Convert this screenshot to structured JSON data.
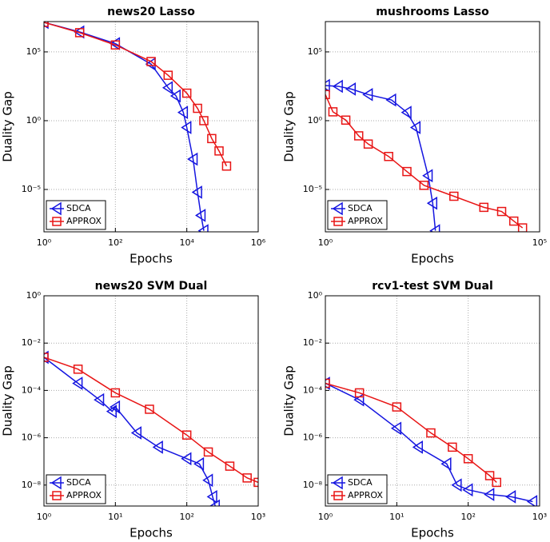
{
  "chart_data": [
    {
      "type": "line",
      "title": "news20 Lasso",
      "xlabel": "Epochs",
      "ylabel": "Duality Gap",
      "log_x": true,
      "log_y": true,
      "grid": true,
      "legend": "lower left",
      "xlim": [
        1,
        1000000
      ],
      "ylim": [
        8.3e-09,
        16000000.0
      ],
      "xticks": [
        {
          "value": 1,
          "label": "10⁰"
        },
        {
          "value": 100,
          "label": "10²"
        },
        {
          "value": 10000,
          "label": "10⁴"
        },
        {
          "value": 1000000,
          "label": "10⁶"
        }
      ],
      "yticks": [
        {
          "value": 1e-05,
          "label": "10⁻⁵"
        },
        {
          "value": 1,
          "label": "10⁰"
        },
        {
          "value": 100000,
          "label": "10⁵"
        }
      ],
      "series": [
        {
          "name": "SDCA",
          "color": "#1515e0",
          "marker": "triangle",
          "x": [
            1,
            10,
            100,
            1000,
            3000,
            5000,
            8000,
            10000,
            15000,
            20000,
            25000,
            30000
          ],
          "values": [
            14000000.0,
            2800000.0,
            400000.0,
            13000.0,
            250,
            63,
            4,
            0.32,
            0.0016,
            6.3e-06,
            1.3e-07,
            1e-08
          ]
        },
        {
          "name": "APPROX",
          "color": "#e81515",
          "marker": "square",
          "x": [
            1,
            10,
            100,
            1000,
            3000,
            10000,
            20000,
            30000,
            50000,
            80000,
            130000
          ],
          "values": [
            14000000.0,
            2500000.0,
            320000.0,
            20000.0,
            2000,
            100,
            7.9,
            1,
            0.05,
            0.0063,
            0.0005
          ]
        }
      ]
    },
    {
      "type": "line",
      "title": "mushrooms Lasso",
      "xlabel": "Epochs",
      "ylabel": "Duality Gap",
      "log_x": true,
      "log_y": true,
      "grid": true,
      "legend": "lower left",
      "xlim": [
        1,
        100000
      ],
      "ylim": [
        8.3e-09,
        16000000.0
      ],
      "xticks": [
        {
          "value": 1,
          "label": "10⁰"
        },
        {
          "value": 100000,
          "label": "10⁵"
        }
      ],
      "yticks": [
        {
          "value": 1e-05,
          "label": "10⁻⁵"
        },
        {
          "value": 1,
          "label": "10⁰"
        },
        {
          "value": 100000,
          "label": "10⁵"
        }
      ],
      "series": [
        {
          "name": "SDCA",
          "color": "#1515e0",
          "marker": "triangle",
          "x": [
            1,
            2,
            4,
            10,
            35,
            80,
            130,
            250,
            320,
            370
          ],
          "values": [
            360,
            316,
            200,
            79,
            32,
            4,
            0.32,
            0.0001,
            1e-06,
            1e-08
          ]
        },
        {
          "name": "APPROX",
          "color": "#e81515",
          "marker": "square",
          "x": [
            1,
            1.5,
            3,
            6,
            10,
            30,
            80,
            200,
            1000,
            5000,
            13000,
            25000,
            40000
          ],
          "values": [
            79,
            4.4,
            1.1,
            0.079,
            0.02,
            0.0025,
            0.0002,
            2e-05,
            3.2e-06,
            5e-07,
            2.5e-07,
            5e-08,
            1.6e-08
          ]
        }
      ]
    },
    {
      "type": "line",
      "title": "news20 SVM Dual",
      "xlabel": "Epochs",
      "ylabel": "Duality Gap",
      "log_x": true,
      "log_y": true,
      "grid": true,
      "legend": "lower left",
      "xlim": [
        1,
        1000
      ],
      "ylim": [
        1.3e-09,
        1
      ],
      "xticks": [
        {
          "value": 1,
          "label": "10⁰"
        },
        {
          "value": 10,
          "label": "10¹"
        },
        {
          "value": 100,
          "label": "10²"
        },
        {
          "value": 1000,
          "label": "10³"
        }
      ],
      "yticks": [
        {
          "value": 1e-08,
          "label": "10⁻⁸"
        },
        {
          "value": 1e-06,
          "label": "10⁻⁶"
        },
        {
          "value": 0.0001,
          "label": "10⁻⁴"
        },
        {
          "value": 0.01,
          "label": "10⁻²"
        },
        {
          "value": 1,
          "label": "10⁰"
        }
      ],
      "series": [
        {
          "name": "SDCA",
          "color": "#1515e0",
          "marker": "triangle",
          "x": [
            1,
            3,
            6,
            9,
            10,
            20,
            40,
            100,
            150,
            200,
            230,
            250
          ],
          "values": [
            0.0025,
            0.0002,
            4e-05,
            1.3e-05,
            2e-05,
            1.6e-06,
            4e-07,
            1.3e-07,
            7.9e-08,
            1.6e-08,
            3.2e-09,
            1.3e-09
          ]
        },
        {
          "name": "APPROX",
          "color": "#e81515",
          "marker": "square",
          "x": [
            1,
            3,
            10,
            30,
            100,
            200,
            400,
            700,
            1000
          ],
          "values": [
            0.0025,
            0.00079,
            7.9e-05,
            1.6e-05,
            1.3e-06,
            2.5e-07,
            6.3e-08,
            2e-08,
            1.3e-08
          ]
        }
      ]
    },
    {
      "type": "line",
      "title": "rcv1-test SVM Dual",
      "xlabel": "Epochs",
      "ylabel": "Duality Gap",
      "log_x": true,
      "log_y": true,
      "grid": true,
      "legend": "lower left",
      "xlim": [
        1,
        1000
      ],
      "ylim": [
        1.3e-09,
        1
      ],
      "xticks": [
        {
          "value": 1,
          "label": "10⁰"
        },
        {
          "value": 10,
          "label": "10¹"
        },
        {
          "value": 100,
          "label": "10²"
        },
        {
          "value": 1000,
          "label": "10³"
        }
      ],
      "yticks": [
        {
          "value": 1e-08,
          "label": "10⁻⁸"
        },
        {
          "value": 1e-06,
          "label": "10⁻⁶"
        },
        {
          "value": 0.0001,
          "label": "10⁻⁴"
        },
        {
          "value": 0.01,
          "label": "10⁻²"
        },
        {
          "value": 1,
          "label": "10⁰"
        }
      ],
      "series": [
        {
          "name": "SDCA",
          "color": "#1515e0",
          "marker": "triangle",
          "x": [
            1,
            3,
            10,
            20,
            50,
            70,
            100,
            200,
            400,
            800
          ],
          "values": [
            0.0002,
            4e-05,
            2.5e-06,
            4e-07,
            7.9e-08,
            1e-08,
            6.3e-09,
            4e-09,
            3.2e-09,
            2e-09
          ]
        },
        {
          "name": "APPROX",
          "color": "#e81515",
          "marker": "square",
          "x": [
            1,
            3,
            10,
            30,
            60,
            100,
            200,
            250
          ],
          "values": [
            0.0002,
            7.9e-05,
            2e-05,
            1.6e-06,
            4e-07,
            1.3e-07,
            2.5e-08,
            1.3e-08
          ]
        }
      ]
    }
  ]
}
